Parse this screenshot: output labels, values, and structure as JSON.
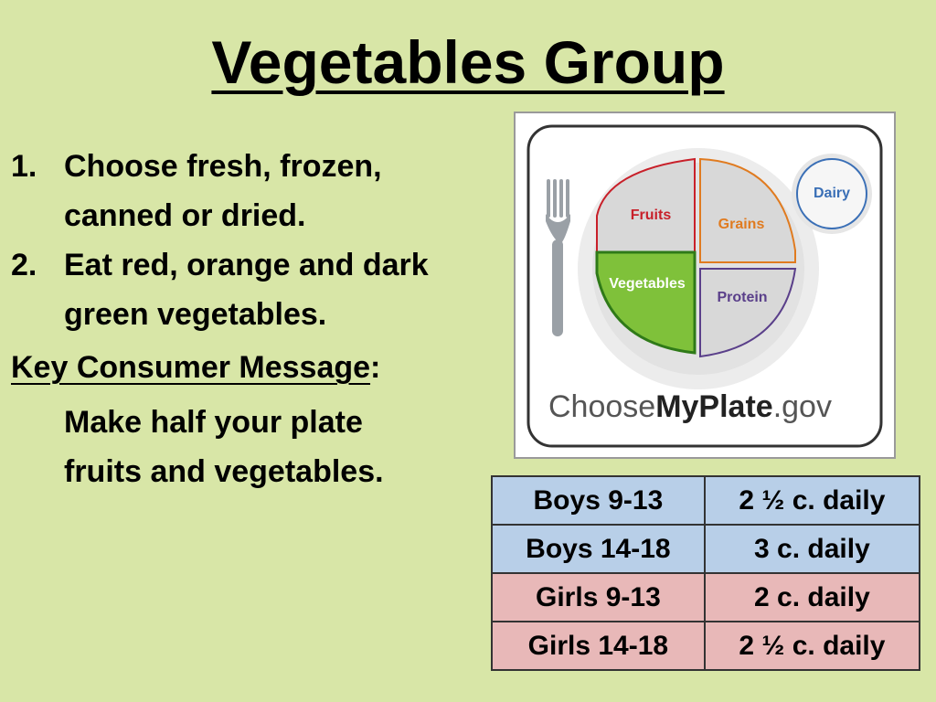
{
  "title": "Vegetables Group",
  "list": [
    {
      "num": "1.",
      "text": "Choose fresh, frozen, canned or dried."
    },
    {
      "num": "2.",
      "text": "Eat red, orange and dark green vegetables."
    }
  ],
  "key_message": {
    "label": "Key Consumer Message",
    "colon": ":",
    "text": "Make half your plate fruits and vegetables."
  },
  "plate": {
    "fruits": "Fruits",
    "grains": "Grains",
    "vegetables": "Vegetables",
    "protein": "Protein",
    "dairy": "Dairy",
    "logo_choose": "Choose",
    "logo_myplate": "MyPlate",
    "logo_gov": ".gov",
    "colors": {
      "fruits": "#c8202a",
      "grains": "#e07b20",
      "vegetables": "#5aa82b",
      "protein": "#5a3f8a",
      "dairy": "#3a6fb6"
    }
  },
  "servings": [
    {
      "group": "Boys 9-13",
      "amount": "2 ½ c. daily",
      "type": "boys"
    },
    {
      "group": "Boys 14-18",
      "amount": "3 c. daily",
      "type": "boys"
    },
    {
      "group": "Girls 9-13",
      "amount": "2 c. daily",
      "type": "girls"
    },
    {
      "group": "Girls 14-18",
      "amount": "2 ½ c. daily",
      "type": "girls"
    }
  ]
}
